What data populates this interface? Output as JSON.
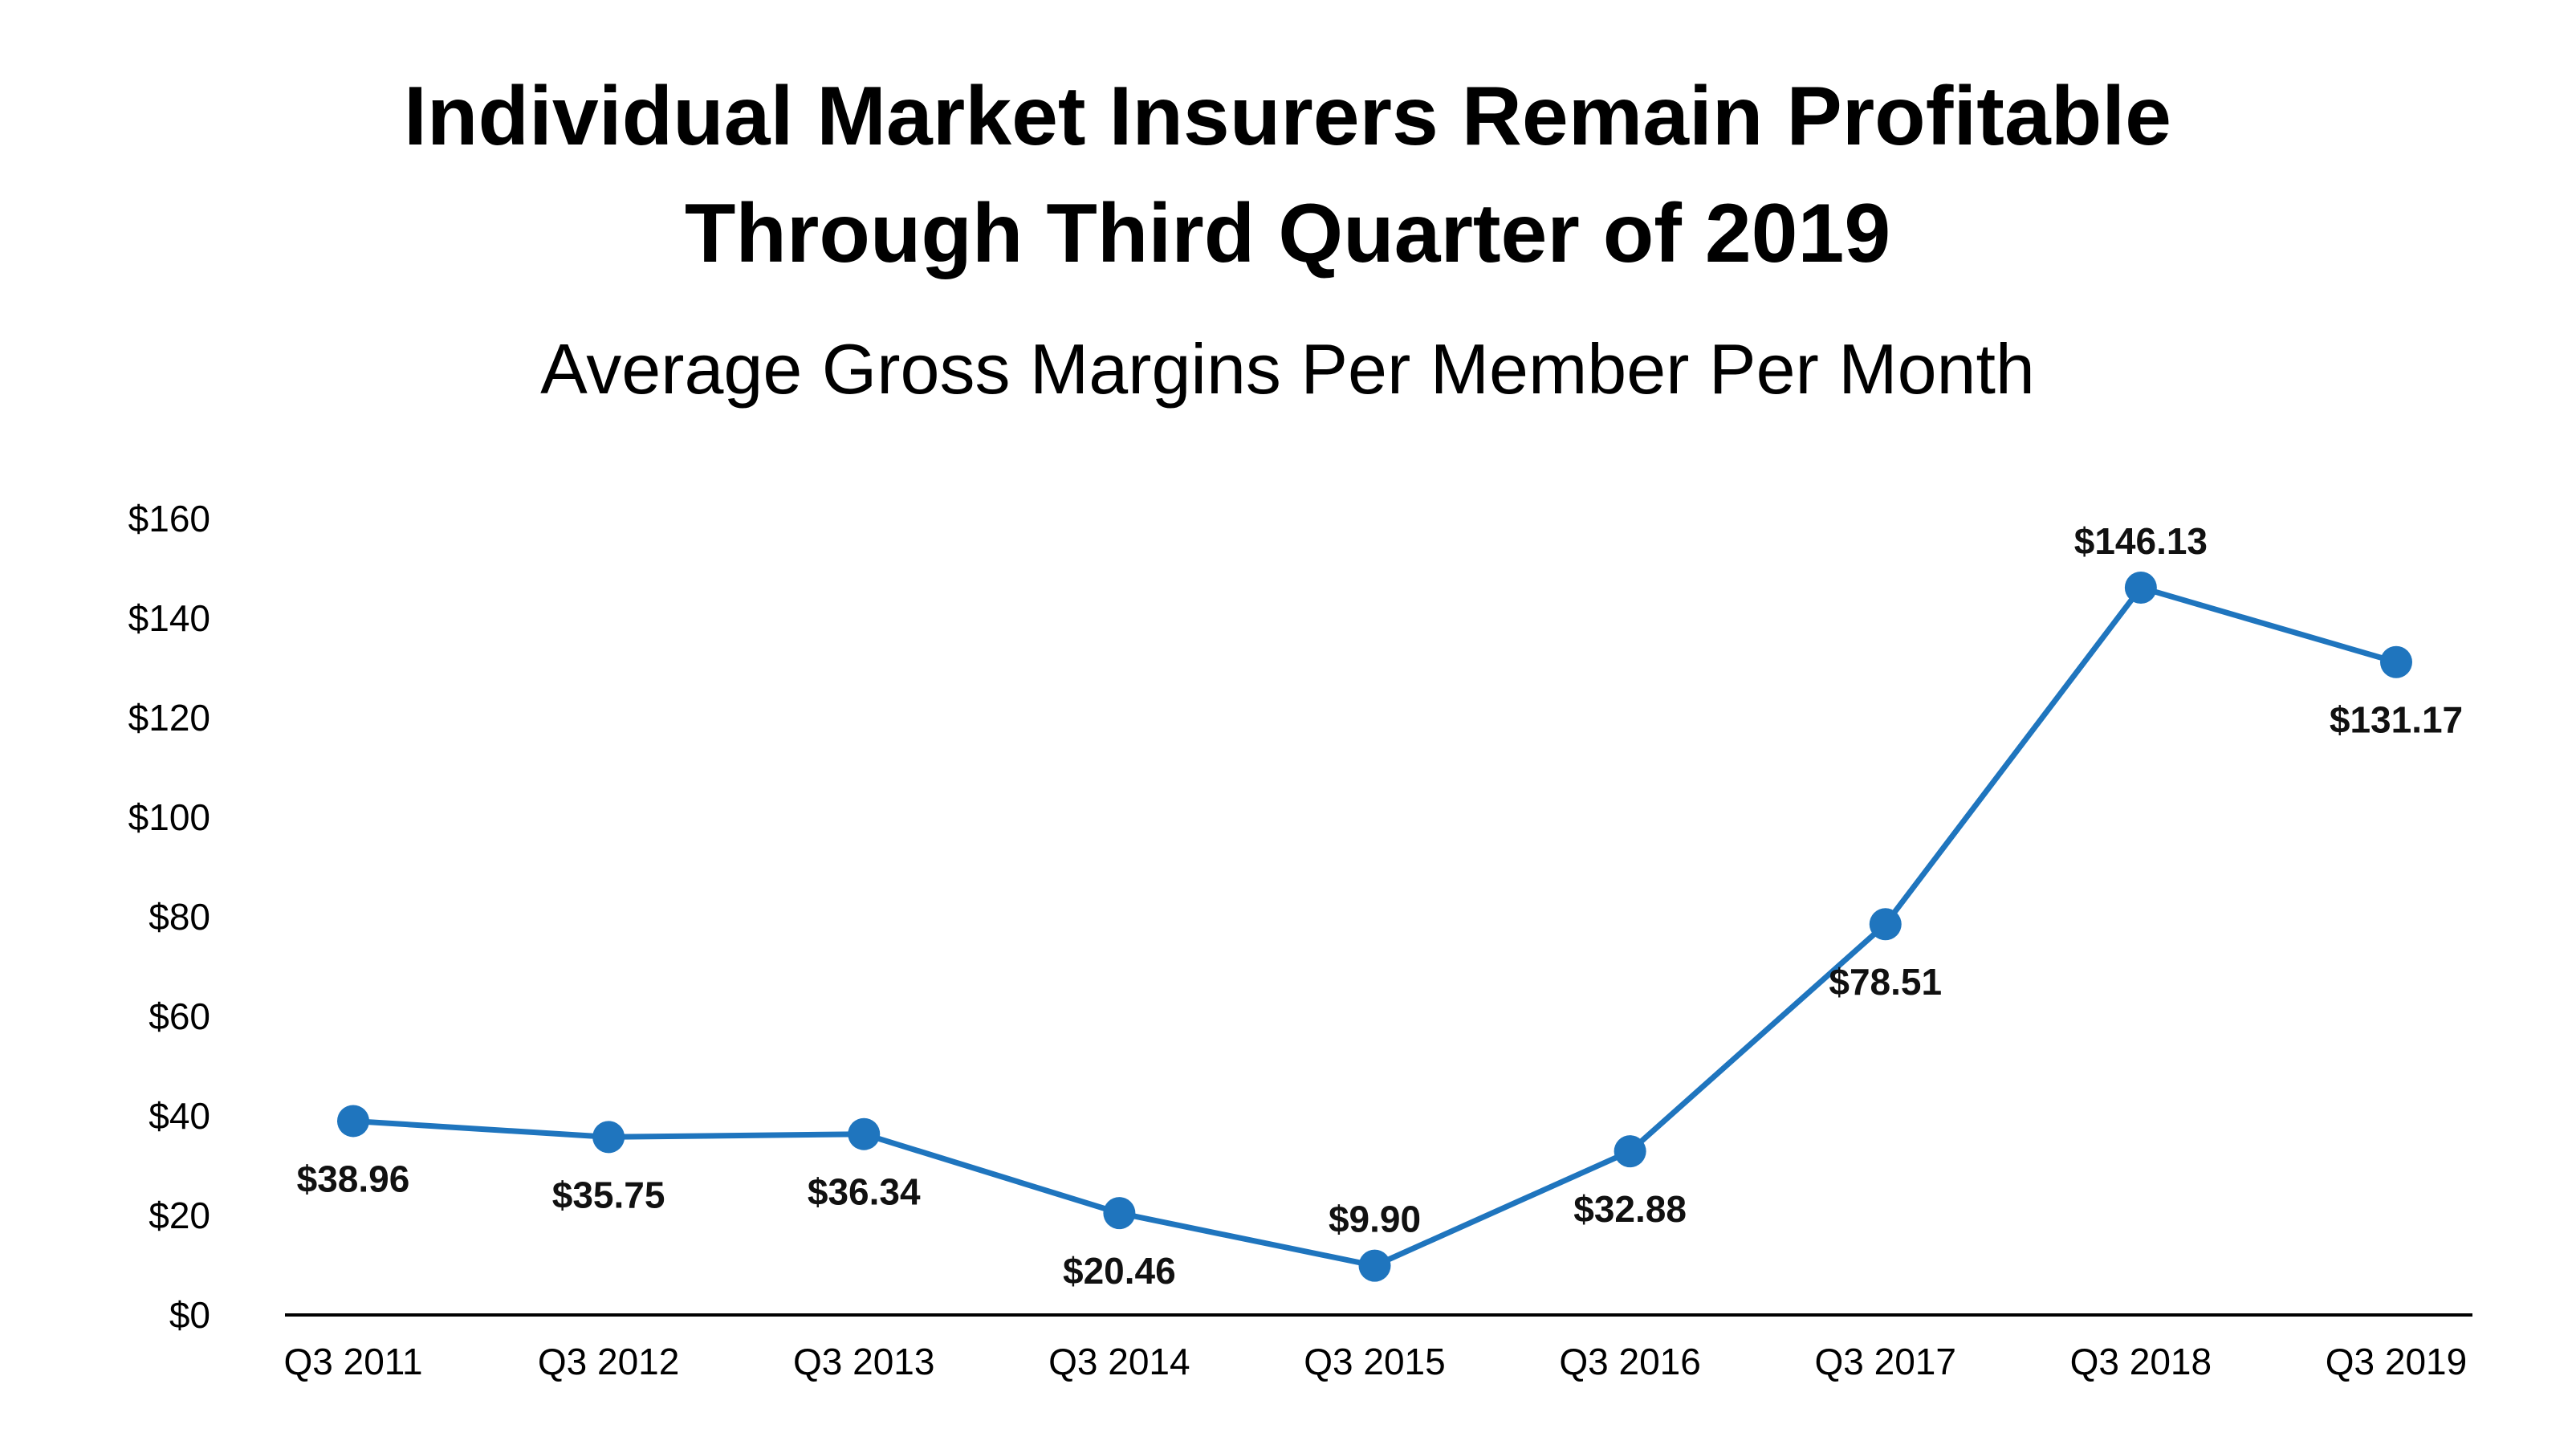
{
  "chart_data": {
    "type": "line",
    "title_lines": [
      "Individual Market Insurers Remain Profitable",
      "Through Third Quarter of 2019"
    ],
    "subtitle": "Average Gross Margins Per Member Per Month",
    "xlabel": "",
    "ylabel": "",
    "categories": [
      "Q3 2011",
      "Q3 2012",
      "Q3 2013",
      "Q3 2014",
      "Q3 2015",
      "Q3 2016",
      "Q3 2017",
      "Q3 2018",
      "Q3 2019"
    ],
    "series": [
      {
        "name": "Average Gross Margins Per Member Per Month",
        "values": [
          38.96,
          35.75,
          36.34,
          20.46,
          9.9,
          32.88,
          78.51,
          146.13,
          131.17
        ],
        "data_labels": [
          "$38.96",
          "$35.75",
          "$36.34",
          "$20.46",
          "$9.90",
          "$32.88",
          "$78.51",
          "$146.13",
          "$131.17"
        ],
        "label_placement": [
          "below",
          "below",
          "below",
          "below",
          "above",
          "below",
          "below",
          "above",
          "below"
        ]
      }
    ],
    "ylim": [
      0,
      160
    ],
    "yticks": [
      0,
      20,
      40,
      60,
      80,
      100,
      120,
      140,
      160
    ],
    "ytick_labels": [
      "$0",
      "$20",
      "$40",
      "$60",
      "$80",
      "$100",
      "$120",
      "$140",
      "$160"
    ],
    "grid": false,
    "legend": "none",
    "colors": {
      "line": "#1f75be",
      "marker": "#1f75be",
      "axis": "#000000"
    }
  }
}
